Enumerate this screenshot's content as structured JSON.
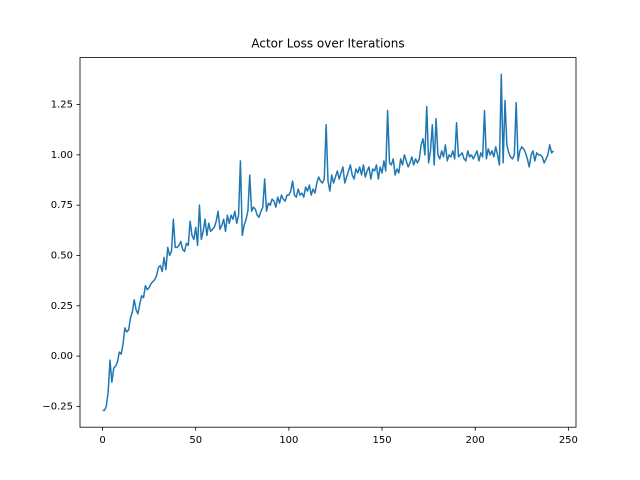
{
  "chart_data": {
    "type": "line",
    "title": "Actor Loss over Iterations",
    "x": [
      0,
      1,
      2,
      3,
      4,
      5,
      6,
      7,
      8,
      9,
      10,
      11,
      12,
      13,
      14,
      15,
      16,
      17,
      18,
      19,
      20,
      21,
      22,
      23,
      24,
      25,
      26,
      27,
      28,
      29,
      30,
      31,
      32,
      33,
      34,
      35,
      36,
      37,
      38,
      39,
      40,
      41,
      42,
      43,
      44,
      45,
      46,
      47,
      48,
      49,
      50,
      51,
      52,
      53,
      54,
      55,
      56,
      57,
      58,
      59,
      60,
      61,
      62,
      63,
      64,
      65,
      66,
      67,
      68,
      69,
      70,
      71,
      72,
      73,
      74,
      75,
      76,
      77,
      78,
      79,
      80,
      81,
      82,
      83,
      84,
      85,
      86,
      87,
      88,
      89,
      90,
      91,
      92,
      93,
      94,
      95,
      96,
      97,
      98,
      99,
      100,
      101,
      102,
      103,
      104,
      105,
      106,
      107,
      108,
      109,
      110,
      111,
      112,
      113,
      114,
      115,
      116,
      117,
      118,
      119,
      120,
      121,
      122,
      123,
      124,
      125,
      126,
      127,
      128,
      129,
      130,
      131,
      132,
      133,
      134,
      135,
      136,
      137,
      138,
      139,
      140,
      141,
      142,
      143,
      144,
      145,
      146,
      147,
      148,
      149,
      150,
      151,
      152,
      153,
      154,
      155,
      156,
      157,
      158,
      159,
      160,
      161,
      162,
      163,
      164,
      165,
      166,
      167,
      168,
      169,
      170,
      171,
      172,
      173,
      174,
      175,
      176,
      177,
      178,
      179,
      180,
      181,
      182,
      183,
      184,
      185,
      186,
      187,
      188,
      189,
      190,
      191,
      192,
      193,
      194,
      195,
      196,
      197,
      198,
      199,
      200,
      201,
      202,
      203,
      204,
      205,
      206,
      207,
      208,
      209,
      210,
      211,
      212,
      213,
      214,
      215,
      216,
      217,
      218,
      219,
      220,
      221,
      222,
      223,
      224,
      225,
      226,
      227,
      228,
      229,
      230,
      231,
      232,
      233,
      234,
      235,
      236,
      237,
      238,
      239,
      240,
      241,
      242
    ],
    "series": [
      {
        "color": "#1f77b4",
        "values": [
          -0.27,
          -0.27,
          -0.25,
          -0.18,
          -0.02,
          -0.13,
          -0.06,
          -0.05,
          -0.03,
          0.02,
          0.01,
          0.06,
          0.14,
          0.12,
          0.13,
          0.19,
          0.22,
          0.28,
          0.23,
          0.21,
          0.26,
          0.3,
          0.29,
          0.35,
          0.33,
          0.34,
          0.36,
          0.37,
          0.38,
          0.4,
          0.44,
          0.45,
          0.42,
          0.49,
          0.43,
          0.54,
          0.5,
          0.52,
          0.68,
          0.54,
          0.54,
          0.55,
          0.57,
          0.53,
          0.52,
          0.56,
          0.55,
          0.67,
          0.6,
          0.58,
          0.64,
          0.55,
          0.75,
          0.58,
          0.62,
          0.68,
          0.6,
          0.66,
          0.62,
          0.63,
          0.64,
          0.67,
          0.72,
          0.63,
          0.65,
          0.68,
          0.62,
          0.7,
          0.66,
          0.7,
          0.68,
          0.72,
          0.66,
          0.7,
          0.97,
          0.6,
          0.65,
          0.68,
          0.72,
          0.9,
          0.72,
          0.74,
          0.73,
          0.7,
          0.69,
          0.72,
          0.74,
          0.88,
          0.72,
          0.76,
          0.75,
          0.78,
          0.77,
          0.74,
          0.79,
          0.76,
          0.8,
          0.78,
          0.77,
          0.8,
          0.8,
          0.82,
          0.87,
          0.8,
          0.79,
          0.83,
          0.8,
          0.81,
          0.79,
          0.84,
          0.82,
          0.85,
          0.8,
          0.83,
          0.81,
          0.86,
          0.89,
          0.87,
          0.86,
          0.88,
          1.15,
          0.87,
          0.82,
          0.9,
          0.86,
          0.89,
          0.92,
          0.88,
          0.91,
          0.94,
          0.86,
          0.89,
          0.92,
          0.95,
          0.9,
          0.88,
          0.93,
          0.91,
          0.94,
          0.9,
          0.95,
          0.89,
          0.92,
          0.94,
          0.88,
          0.93,
          0.92,
          0.95,
          0.88,
          0.94,
          0.91,
          0.97,
          0.92,
          1.22,
          0.96,
          0.95,
          0.98,
          0.9,
          0.93,
          0.91,
          0.98,
          0.95,
          1.0,
          0.97,
          0.94,
          0.96,
          0.99,
          0.95,
          0.98,
          0.96,
          0.98,
          1.05,
          1.08,
          1.0,
          1.24,
          0.96,
          1.02,
          1.15,
          0.95,
          1.18,
          1.0,
          0.98,
          1.02,
          0.99,
          1.05,
          0.97,
          1.0,
          0.99,
          1.02,
          0.98,
          1.16,
          0.99,
          1.0,
          1.01,
          0.98,
          0.97,
          1.02,
          0.99,
          1.0,
          0.98,
          1.0,
          1.02,
          0.97,
          1.01,
          0.99,
          1.22,
          0.98,
          1.03,
          1.0,
          1.02,
          0.99,
          1.04,
          1.0,
          0.95,
          1.4,
          0.96,
          1.27,
          1.05,
          1.01,
          0.99,
          0.98,
          1.0,
          1.26,
          0.97,
          1.02,
          1.04,
          1.03,
          1.01,
          0.98,
          0.94,
          1.0,
          1.02,
          0.97,
          1.01,
          1.0,
          1.0,
          0.99,
          0.96,
          0.98,
          1.0,
          1.05,
          1.01,
          1.02
        ]
      }
    ],
    "xlim": [
      -12.1,
      254.1
    ],
    "ylim": [
      -0.3535,
      1.4835
    ],
    "xticks": [
      0,
      50,
      100,
      150,
      200,
      250
    ],
    "yticks": [
      {
        "value": -0.25,
        "label": "−0.25"
      },
      {
        "value": 0,
        "label": "0.00"
      },
      {
        "value": 0.25,
        "label": "0.25"
      },
      {
        "value": 0.5,
        "label": "0.50"
      },
      {
        "value": 0.75,
        "label": "0.75"
      },
      {
        "value": 1,
        "label": "1.00"
      },
      {
        "value": 1.25,
        "label": "1.25"
      }
    ],
    "grid": false
  }
}
